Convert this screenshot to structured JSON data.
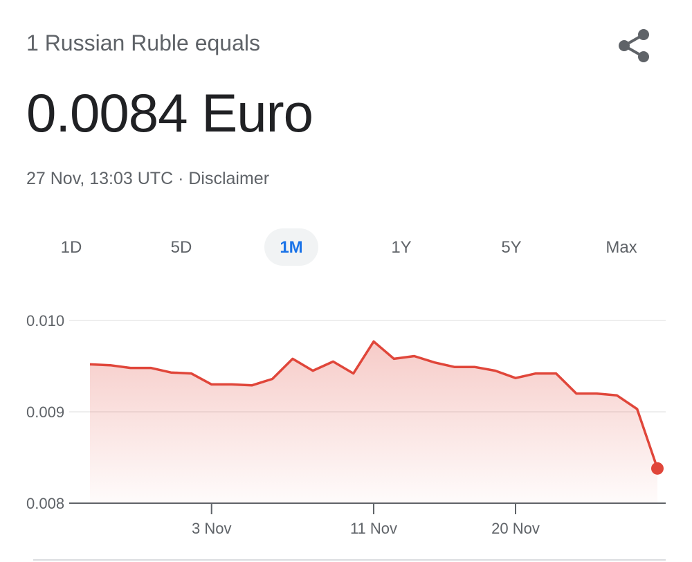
{
  "header": {
    "title": "1 Russian Ruble equals",
    "rate": "0.0084 Euro",
    "timestamp": "27 Nov, 13:03 UTC",
    "disclaimer": "Disclaimer"
  },
  "tabs": {
    "items": [
      "1D",
      "5D",
      "1M",
      "1Y",
      "5Y",
      "Max"
    ],
    "selected": 2
  },
  "chart_data": {
    "type": "line",
    "color": "#e0463a",
    "categories": [
      null,
      null,
      null,
      null,
      null,
      null,
      "3 Nov",
      null,
      null,
      null,
      null,
      null,
      null,
      null,
      "11 Nov",
      null,
      null,
      null,
      null,
      null,
      null,
      "20 Nov",
      null,
      null,
      null,
      null,
      null,
      null,
      null
    ],
    "values": [
      0.00952,
      0.00951,
      0.00948,
      0.00948,
      0.00943,
      0.00942,
      0.0093,
      0.0093,
      0.00929,
      0.00936,
      0.00958,
      0.00945,
      0.00955,
      0.00942,
      0.00977,
      0.00958,
      0.00961,
      0.00954,
      0.00949,
      0.00949,
      0.00945,
      0.00937,
      0.00942,
      0.00942,
      0.0092,
      0.0092,
      0.00918,
      0.00903,
      0.00838
    ],
    "ylim": [
      0.008,
      0.01
    ],
    "yticks": [
      0.008,
      0.009,
      {
        "value": 0.01,
        "label": "0.010"
      }
    ],
    "grid": true
  }
}
